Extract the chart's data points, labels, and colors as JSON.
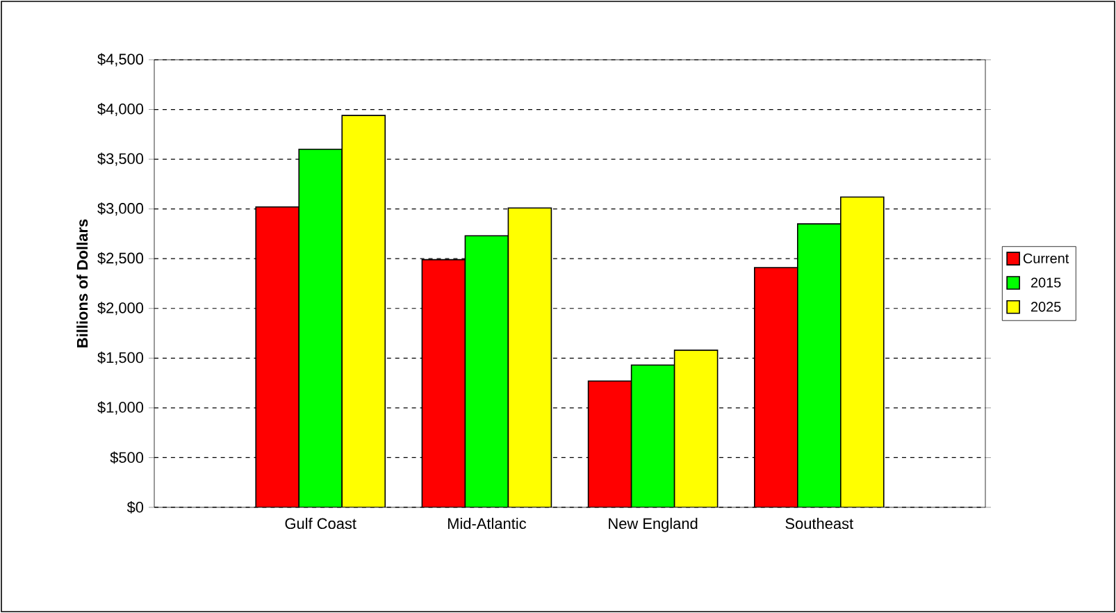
{
  "chart_data": {
    "type": "bar",
    "ylabel": "Billions of Dollars",
    "categories": [
      "Gulf Coast",
      "Mid-Atlantic",
      "New England",
      "Southeast"
    ],
    "series": [
      {
        "name": "Current",
        "color": "#ff0000",
        "values": [
          3020,
          2490,
          1270,
          2410
        ]
      },
      {
        "name": "2015",
        "color": "#00ff00",
        "values": [
          3600,
          2730,
          1430,
          2850
        ]
      },
      {
        "name": "2025",
        "color": "#ffff00",
        "values": [
          3940,
          3010,
          1580,
          3120
        ]
      }
    ],
    "ylim": [
      0,
      4500
    ],
    "yticks": [
      {
        "value": 0,
        "label": "$0"
      },
      {
        "value": 500,
        "label": "$500"
      },
      {
        "value": 1000,
        "label": "$1,000"
      },
      {
        "value": 1500,
        "label": "$1,500"
      },
      {
        "value": 2000,
        "label": "$2,000"
      },
      {
        "value": 2500,
        "label": "$2,500"
      },
      {
        "value": 3000,
        "label": "$3,000"
      },
      {
        "value": 3500,
        "label": "$3,500"
      },
      {
        "value": 4000,
        "label": "$4,000"
      },
      {
        "value": 4500,
        "label": "$4,500"
      }
    ],
    "grid": "y",
    "legend": "right"
  }
}
